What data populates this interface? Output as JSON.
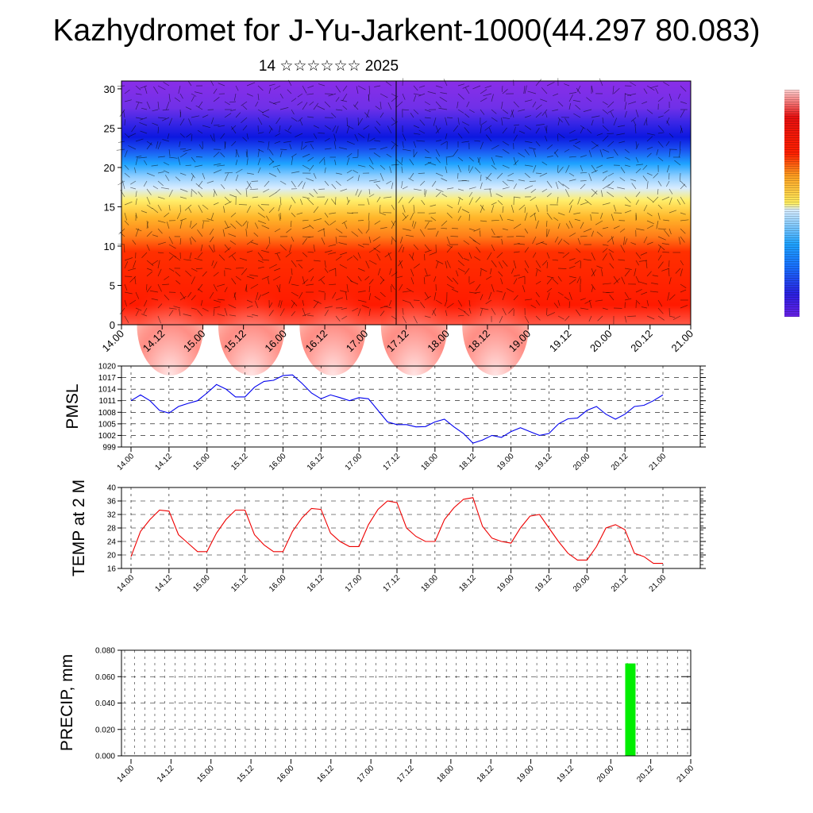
{
  "title": "Kazhydromet for J-Yu-Jarkent-1000(44.297 80.083)",
  "subtitle": "14 ☆☆☆☆☆☆ 2025",
  "time_labels": [
    "14.00",
    "14.12",
    "15.00",
    "15.12",
    "16.00",
    "16.12",
    "17.00",
    "17.12",
    "18.00",
    "18.12",
    "19.00",
    "19.12",
    "20.00",
    "20.12",
    "21.00"
  ],
  "chart_data": [
    {
      "type": "heatmap",
      "name": "cross-section",
      "categories": [
        "14.00",
        "14.12",
        "15.00",
        "15.12",
        "16.00",
        "16.12",
        "17.00",
        "17.12",
        "18.00",
        "18.12",
        "19.00",
        "19.12",
        "20.00",
        "20.12",
        "21.00"
      ],
      "y_ticks": [
        0,
        5,
        10,
        15,
        20,
        25,
        30
      ],
      "ylim": [
        0,
        31
      ],
      "description_of_fill": "colour bands: red near surface, orange/yellow 10-17, light blue 17-21, blue 22-27, violet above 27, with wind barbs",
      "colorbar_colors": [
        "#7a2be6",
        "#2020e0",
        "#1fa3ff",
        "#d6ecff",
        "#ffee60",
        "#ffa020",
        "#ff2000",
        "#ffd0d0"
      ]
    },
    {
      "type": "line",
      "name": "PMSL",
      "ylabel": "PMSL",
      "y_ticks": [
        999,
        1002,
        1005,
        1008,
        1011,
        1014,
        1017,
        1020
      ],
      "ylim": [
        999,
        1020
      ],
      "color": "#0000ee",
      "x": [
        0,
        1,
        2,
        3,
        4,
        5,
        6,
        7,
        8,
        9,
        10,
        11,
        12,
        13,
        14,
        15,
        16,
        17,
        18,
        19,
        20,
        21,
        22,
        23,
        24,
        25,
        26,
        27,
        28,
        29,
        30,
        31,
        32,
        33,
        34,
        35,
        36,
        37,
        38,
        39,
        40,
        41,
        42,
        43,
        44,
        45,
        46,
        47,
        48,
        49,
        50,
        51,
        52,
        53,
        54,
        55,
        56
      ],
      "values": [
        1011,
        1012.5,
        1011,
        1008.5,
        1007.8,
        1009.5,
        1010.3,
        1011,
        1013,
        1015.2,
        1014,
        1012,
        1012,
        1014.5,
        1016,
        1016.3,
        1017.5,
        1017.7,
        1015.5,
        1013,
        1011.5,
        1012.5,
        1011.8,
        1011,
        1011.8,
        1011.5,
        1008.5,
        1005.5,
        1004.8,
        1004.8,
        1004.2,
        1004.3,
        1005.5,
        1006.2,
        1004.2,
        1002.5,
        1000,
        1000.8,
        1002,
        1001.5,
        1003,
        1004,
        1003,
        1002,
        1002.5,
        1005,
        1006.3,
        1006.5,
        1008.5,
        1009.5,
        1007.5,
        1006.2,
        1007.5,
        1009.5,
        1009.8,
        1011,
        1012.5
      ]
    },
    {
      "type": "line",
      "name": "TEMP at 2 M",
      "ylabel": "TEMP at 2 M",
      "y_ticks": [
        16,
        20,
        24,
        28,
        32,
        36,
        40
      ],
      "ylim": [
        16,
        40
      ],
      "color": "#ee0000",
      "x": [
        0,
        1,
        2,
        3,
        4,
        5,
        6,
        7,
        8,
        9,
        10,
        11,
        12,
        13,
        14,
        15,
        16,
        17,
        18,
        19,
        20,
        21,
        22,
        23,
        24,
        25,
        26,
        27,
        28,
        29,
        30,
        31,
        32,
        33,
        34,
        35,
        36,
        37,
        38,
        39,
        40,
        41,
        42,
        43,
        44,
        45,
        46,
        47,
        48,
        49,
        50,
        51,
        52,
        53,
        54,
        55,
        56
      ],
      "values": [
        19.5,
        27,
        30.5,
        33.3,
        33,
        26,
        23.5,
        21,
        21,
        26.5,
        30.5,
        33.3,
        33.3,
        26,
        23,
        21,
        21,
        27,
        31,
        33.8,
        33.5,
        26.5,
        24,
        22.5,
        22.5,
        29,
        33.5,
        36,
        35.5,
        28,
        25.5,
        24,
        24,
        30.5,
        34,
        36.5,
        37,
        28.5,
        25,
        24,
        23.5,
        28,
        31.5,
        32,
        28,
        24,
        20.5,
        18.5,
        18.5,
        22.5,
        28,
        29,
        27.5,
        20.5,
        19.5,
        17.5,
        17.5
      ]
    },
    {
      "type": "bar",
      "name": "PRECIP",
      "ylabel": "PRECIP, mm",
      "y_ticks": [
        "0.000",
        "0.020",
        "0.040",
        "0.060",
        "0.080"
      ],
      "ylim": [
        0,
        0.08
      ],
      "color": "#00ee00",
      "x": [
        50
      ],
      "values": [
        0.07
      ]
    }
  ]
}
